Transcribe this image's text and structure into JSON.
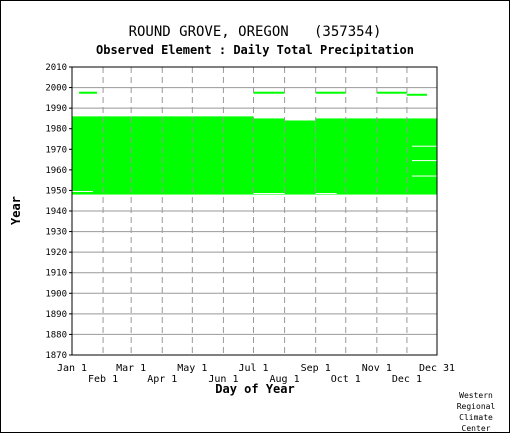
{
  "header": {
    "title": "ROUND GROVE, OREGON   (357354)",
    "subtitle": "Observed Element : Daily Total Precipitation"
  },
  "footer": {
    "credit": [
      "Western",
      "Regional",
      "Climate",
      "Center"
    ]
  },
  "colors": {
    "data": "#00ff00",
    "grid": "#999999",
    "axis": "#000000",
    "background": "#ffffff"
  },
  "chart_data": {
    "type": "heatmap",
    "xlabel": "Day of Year",
    "ylabel": "Year",
    "xlim": [
      1,
      365
    ],
    "ylim": [
      1870,
      2010
    ],
    "grid": true,
    "x_ticks_upper": [
      {
        "label": "Jan 1",
        "day": 1
      },
      {
        "label": "Mar 1",
        "day": 60
      },
      {
        "label": "May 1",
        "day": 121
      },
      {
        "label": "Jul 1",
        "day": 182
      },
      {
        "label": "Sep 1",
        "day": 244
      },
      {
        "label": "Nov 1",
        "day": 305
      },
      {
        "label": "Dec 31",
        "day": 365
      }
    ],
    "x_ticks_lower": [
      {
        "label": "Feb 1",
        "day": 32
      },
      {
        "label": "Apr 1",
        "day": 91
      },
      {
        "label": "Jun 1",
        "day": 152
      },
      {
        "label": "Aug 1",
        "day": 213
      },
      {
        "label": "Oct 1",
        "day": 274
      },
      {
        "label": "Dec 1",
        "day": 335
      }
    ],
    "y_ticks": [
      1870,
      1880,
      1890,
      1900,
      1910,
      1920,
      1930,
      1940,
      1950,
      1960,
      1970,
      1980,
      1990,
      2000,
      2010
    ],
    "observed_blocks": [
      {
        "day_start": 1,
        "day_end": 182,
        "year_start": 1948,
        "year_end": 1986
      },
      {
        "day_start": 182,
        "day_end": 213,
        "year_start": 1948,
        "year_end": 1985
      },
      {
        "day_start": 213,
        "day_end": 244,
        "year_start": 1948,
        "year_end": 1984
      },
      {
        "day_start": 244,
        "day_end": 365,
        "year_start": 1948,
        "year_end": 1985
      }
    ],
    "observed_segments": [
      {
        "day_start": 8,
        "day_end": 26,
        "year": 1997.5
      },
      {
        "day_start": 182,
        "day_end": 213,
        "year": 1997.5
      },
      {
        "day_start": 244,
        "day_end": 274,
        "year": 1997.5
      },
      {
        "day_start": 305,
        "day_end": 335,
        "year": 1997.5
      },
      {
        "day_start": 335,
        "day_end": 355,
        "year": 1996.5
      },
      {
        "day_start": 1,
        "day_end": 22,
        "year": 1950.5
      },
      {
        "day_start": 340,
        "day_end": 365,
        "year": 1972.5
      },
      {
        "day_start": 340,
        "day_end": 365,
        "year": 1963
      }
    ],
    "gaps": [
      {
        "day_start": 1,
        "day_end": 22,
        "year": 1949.5
      },
      {
        "day_start": 182,
        "day_end": 213,
        "year": 1948.5
      },
      {
        "day_start": 244,
        "day_end": 265,
        "year": 1948.5
      },
      {
        "day_start": 340,
        "day_end": 365,
        "year": 1971.5
      },
      {
        "day_start": 340,
        "day_end": 365,
        "year": 1964.5
      },
      {
        "day_start": 340,
        "day_end": 365,
        "year": 1957
      }
    ]
  }
}
